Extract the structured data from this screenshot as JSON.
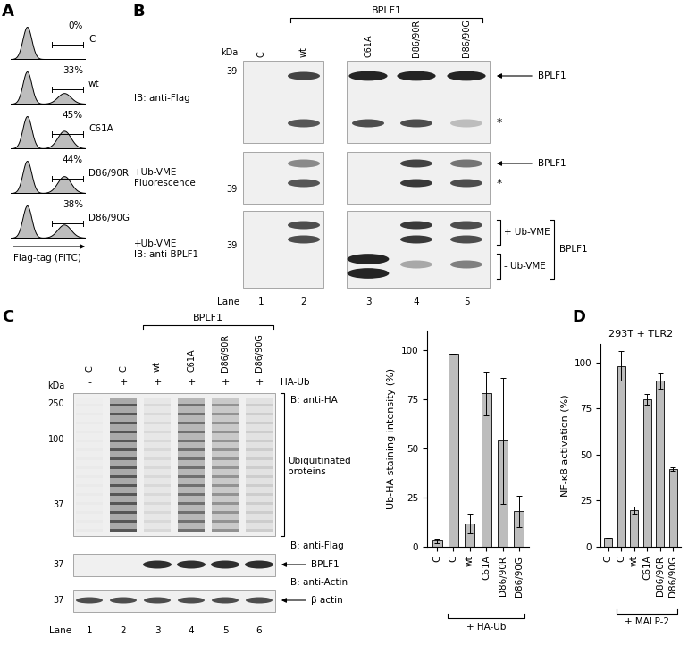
{
  "panel_A": {
    "label": "A",
    "x_label": "Flag-tag (FITC)",
    "samples": [
      {
        "name": "C",
        "positive": {
          "value": 0,
          "label": "0%"
        }
      },
      {
        "name": "wt",
        "positive": {
          "value": 33,
          "label": "33%"
        }
      },
      {
        "name": "C61A",
        "positive": {
          "value": 45,
          "label": "45%"
        }
      },
      {
        "name": "D86/90R",
        "positive": {
          "value": 44,
          "label": "44%"
        }
      },
      {
        "name": "D86/90G",
        "positive": {
          "value": 38,
          "label": "38%"
        }
      }
    ]
  },
  "panel_B": {
    "label": "B",
    "group": "BPLF1",
    "lanes": [
      "C",
      "wt",
      "C61A",
      "D86/90R",
      "D86/90G"
    ],
    "kda": "kDa",
    "lane_title": "Lane",
    "lane_numbers": [
      1,
      2,
      3,
      4,
      5
    ],
    "rows": [
      {
        "label": "IB: anti-Flag",
        "marker": 39,
        "annotations": [
          "BPLF1",
          "*"
        ]
      },
      {
        "label": "+Ub-VME\nFluorescence",
        "marker": 39,
        "annotations": [
          "BPLF1",
          "*"
        ]
      },
      {
        "label": "+Ub-VME\nIB: anti-BPLF1",
        "marker": 39,
        "annotations": [
          "+ Ub-VME",
          "- Ub-VME"
        ],
        "bracket": "BPLF1"
      }
    ]
  },
  "panel_C": {
    "label": "C",
    "group": "BPLF1",
    "lanes": [
      "C",
      "C",
      "wt",
      "C61A",
      "D86/90R",
      "D86/90G"
    ],
    "treatment": "HA-Ub",
    "treatment_signs": [
      "-",
      "+",
      "+",
      "+",
      "+",
      "+"
    ],
    "kda": "kDa",
    "lane_title": "Lane",
    "lane_numbers": [
      1,
      2,
      3,
      4,
      5,
      6
    ],
    "rows": [
      {
        "label": "IB: anti-HA",
        "markers": [
          250,
          100,
          37
        ],
        "annotation": "Ubiquitinated\nproteins"
      },
      {
        "label": "IB: anti-Flag",
        "markers": [
          37
        ],
        "annotation": "BPLF1"
      },
      {
        "label": "IB: anti-Actin",
        "markers": [
          37
        ],
        "annotation": "β actin"
      }
    ]
  },
  "panel_D": {
    "label": "D"
  },
  "chart_data": [
    {
      "type": "bar",
      "ylabel": "Ub-HA staining intensity (%)",
      "categories": [
        "C",
        "C",
        "wt",
        "C61A",
        "D86/90R",
        "D86/90G"
      ],
      "values": [
        3,
        98,
        12,
        78,
        54,
        18
      ],
      "errors": [
        1,
        0,
        5,
        11,
        32,
        8
      ],
      "color": "#bdbdbd",
      "ylim": [
        0,
        110
      ],
      "yticks": [
        0,
        25,
        50,
        75,
        100
      ],
      "treatment": "+ HA-Ub",
      "treated": [
        false,
        true,
        true,
        true,
        true,
        true
      ]
    },
    {
      "type": "bar",
      "title": "293T + TLR2",
      "ylabel": "NF-κB activation (%)",
      "categories": [
        "C",
        "C",
        "wt",
        "C61A",
        "D86/90R",
        "D86/90G"
      ],
      "values": [
        5,
        98,
        20,
        80,
        90,
        42
      ],
      "errors": [
        0,
        8,
        2,
        3,
        4,
        1
      ],
      "color": "#bdbdbd",
      "ylim": [
        0,
        110
      ],
      "yticks": [
        0,
        25,
        50,
        75,
        100
      ],
      "treatment": "+ MALP-2",
      "treated": [
        false,
        true,
        true,
        true,
        true,
        true
      ]
    }
  ]
}
